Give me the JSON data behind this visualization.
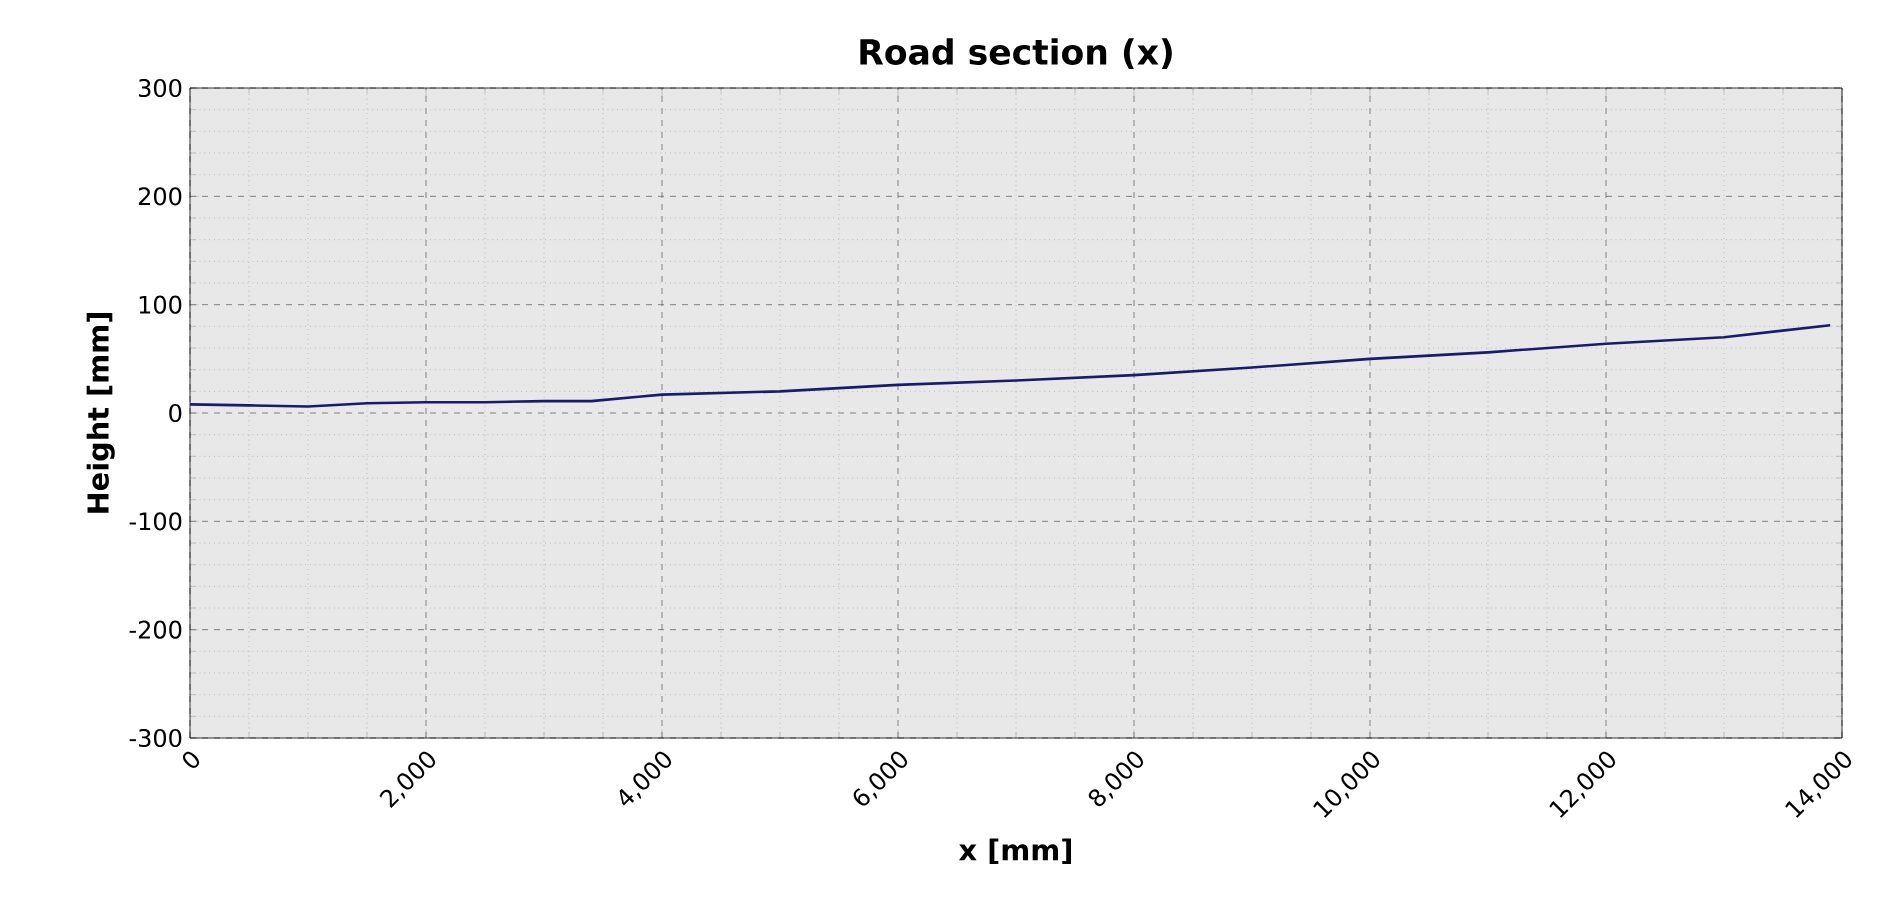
{
  "chart_data": {
    "type": "line",
    "title": "Road section (x)",
    "xlabel": "x [mm]",
    "ylabel": "Height [mm]",
    "x": [
      0,
      500,
      1000,
      1500,
      2000,
      2500,
      3000,
      3400,
      3800,
      4000,
      5000,
      6000,
      7000,
      8000,
      9000,
      10000,
      11000,
      12000,
      13000,
      13900
    ],
    "series": [
      {
        "color": "#1a1a6e",
        "values": [
          8,
          7,
          6,
          9,
          10,
          10,
          11,
          11,
          15,
          17,
          20,
          26,
          30,
          35,
          42,
          50,
          56,
          64,
          70,
          81
        ]
      }
    ],
    "xlim": [
      0,
      14000
    ],
    "xticks": [
      0,
      {
        "value": 2000,
        "label": "2,000"
      },
      {
        "value": 4000,
        "label": "4,000"
      },
      {
        "value": 6000,
        "label": "6,000"
      },
      {
        "value": 8000,
        "label": "8,000"
      },
      {
        "value": 10000,
        "label": "10,000"
      },
      {
        "value": 12000,
        "label": "12,000"
      },
      {
        "value": 14000,
        "label": "14,000"
      }
    ],
    "ylim": [
      -300,
      300
    ],
    "yticks": [
      -300,
      -200,
      -100,
      0,
      100,
      200,
      300
    ],
    "grid": true,
    "marker": "none",
    "line_style": "solid"
  }
}
